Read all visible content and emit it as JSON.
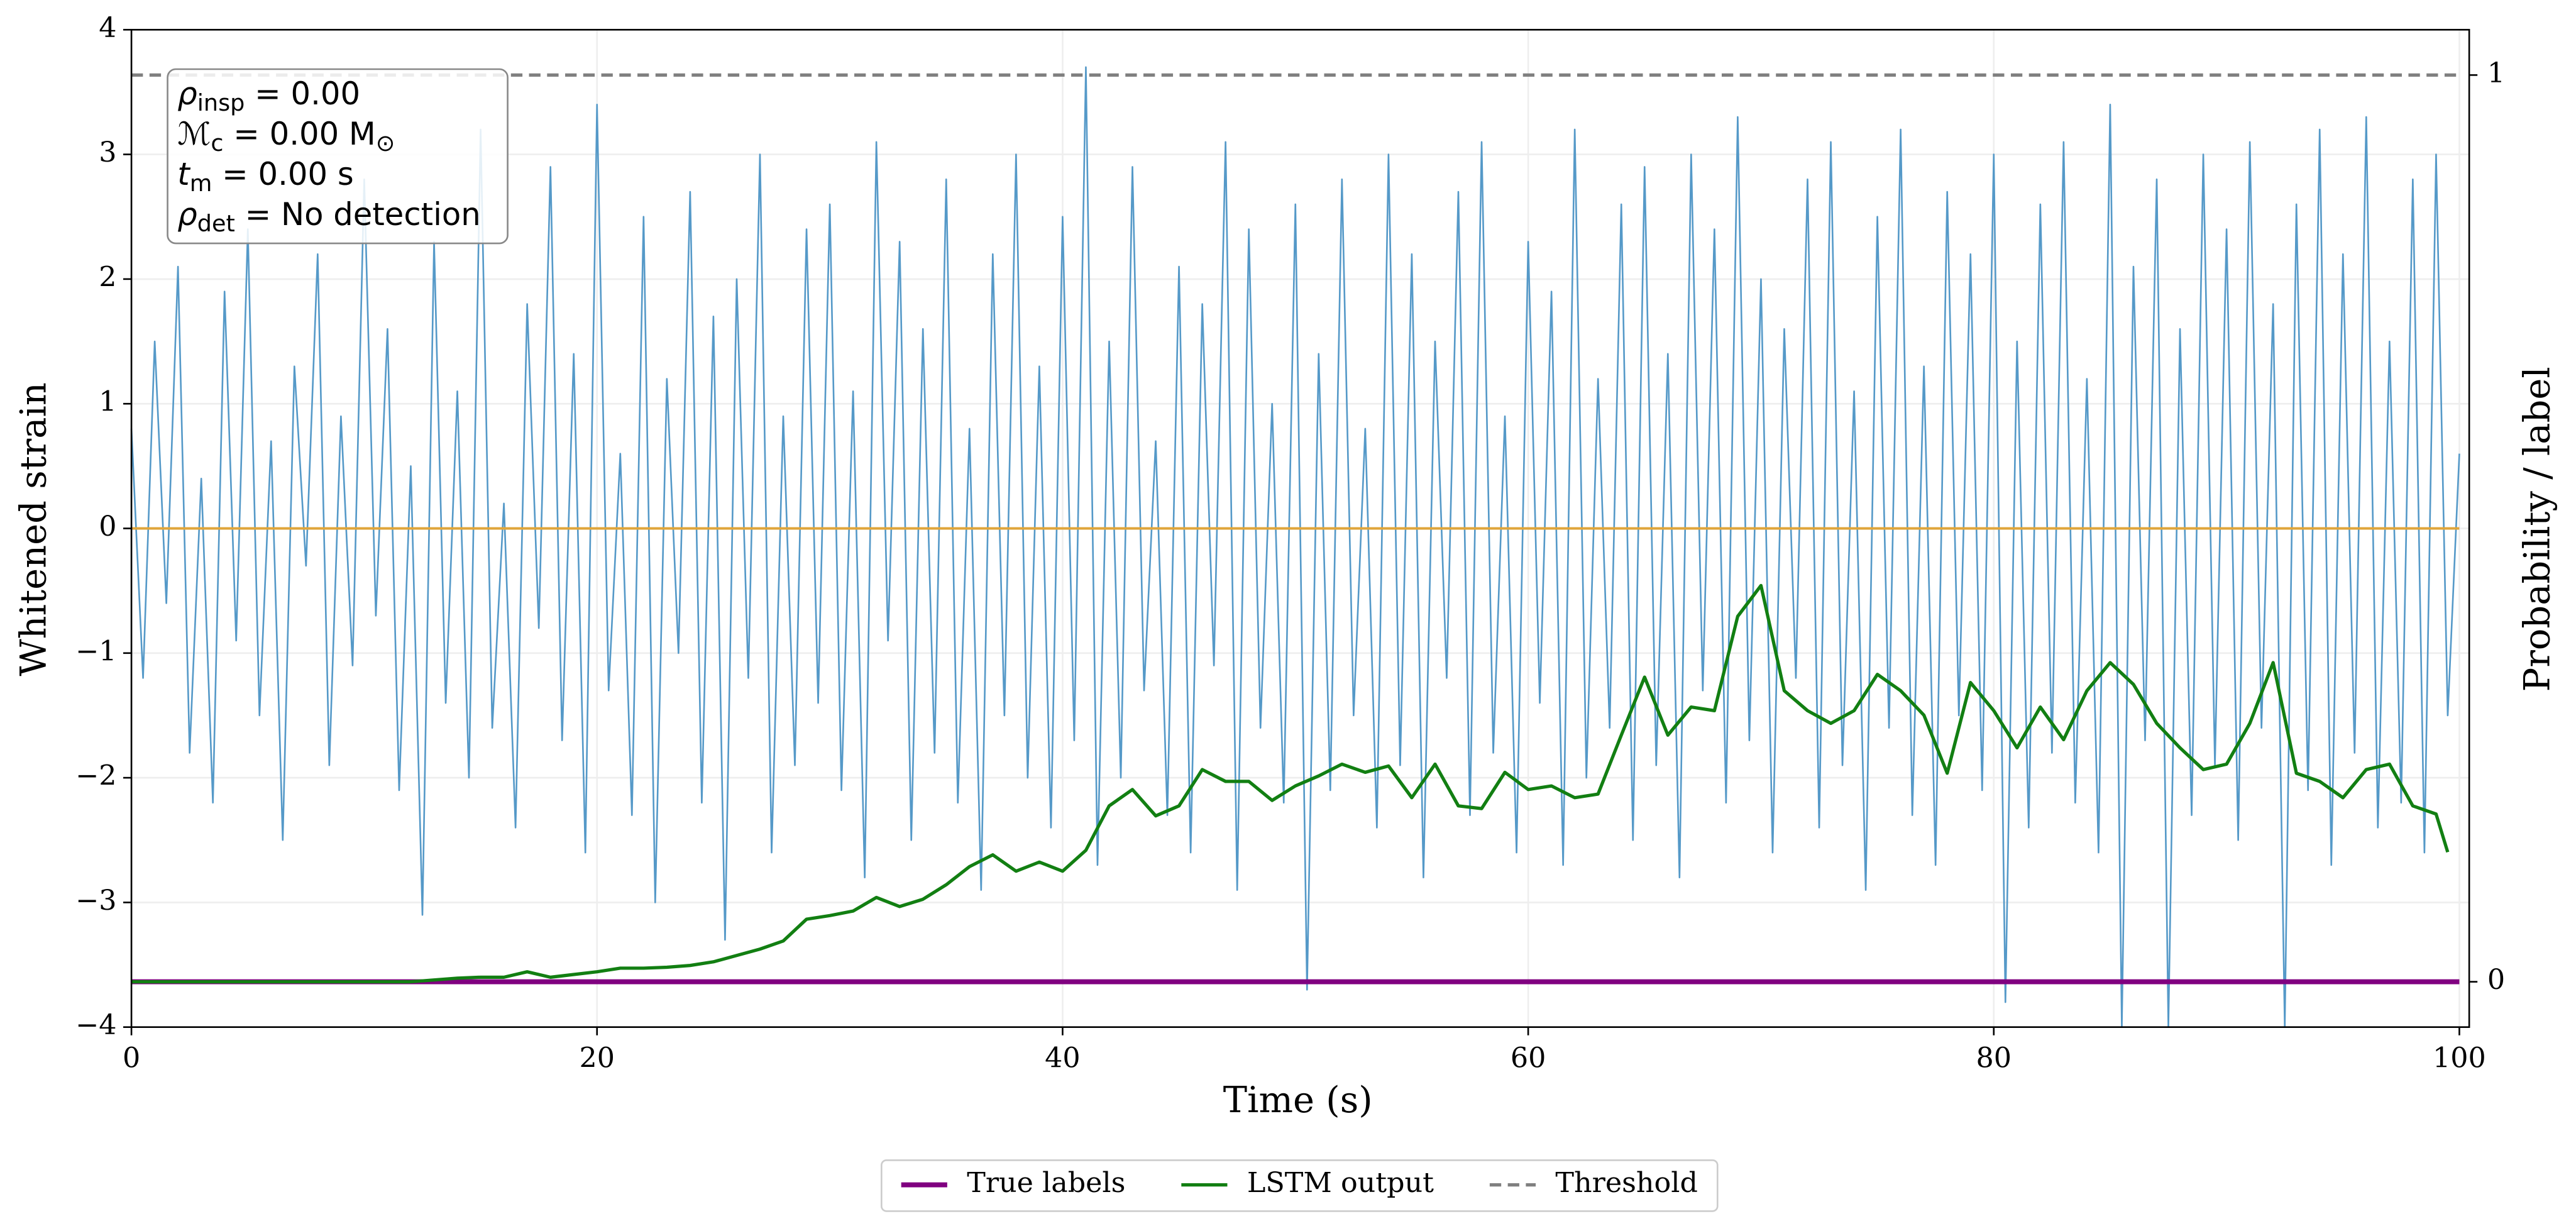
{
  "chart_data": {
    "type": "line",
    "xlabel": "Time (s)",
    "ylabel": "Whitened strain",
    "y2label": "Probability / label",
    "xlim": [
      0,
      100
    ],
    "xticks": [
      0,
      20,
      40,
      60,
      80,
      100
    ],
    "ylim": [
      -4,
      4
    ],
    "yticks": [
      {
        "value": -4,
        "label": "−4"
      },
      {
        "value": -3,
        "label": "−3"
      },
      {
        "value": -2,
        "label": "−2"
      },
      {
        "value": -1,
        "label": "−1"
      },
      0,
      1,
      2,
      3,
      4
    ],
    "y2lim": [
      -0.05,
      1.05
    ],
    "y2ticks": [
      0,
      1
    ],
    "grid": true,
    "legend": "below",
    "annotation": [
      {
        "symbol": "ρ",
        "subscript": "insp",
        "text": " = 0.00"
      },
      {
        "symbol": "ℳ",
        "subscript": "c",
        "text": " = 0.00 M",
        "tail": "⊙"
      },
      {
        "symbol": "t",
        "subscript": "m",
        "text": " = 0.00 s"
      },
      {
        "symbol": "ρ",
        "subscript": "det",
        "text": " = No detection"
      }
    ],
    "series": [
      {
        "color": "#5599c8",
        "x": [
          0,
          0.5,
          1,
          1.5,
          2,
          2.5,
          3,
          3.5,
          4,
          4.5,
          5,
          5.5,
          6,
          6.5,
          7,
          7.5,
          8,
          8.5,
          9,
          9.5,
          10,
          10.5,
          11,
          11.5,
          12,
          12.5,
          13,
          13.5,
          14,
          14.5,
          15,
          15.5,
          16,
          16.5,
          17,
          17.5,
          18,
          18.5,
          19,
          19.5,
          20,
          20.5,
          21,
          21.5,
          22,
          22.5,
          23,
          23.5,
          24,
          24.5,
          25,
          25.5,
          26,
          26.5,
          27,
          27.5,
          28,
          28.5,
          29,
          29.5,
          30,
          30.5,
          31,
          31.5,
          32,
          32.5,
          33,
          33.5,
          34,
          34.5,
          35,
          35.5,
          36,
          36.5,
          37,
          37.5,
          38,
          38.5,
          39,
          39.5,
          40,
          40.5,
          41,
          41.5,
          42,
          42.5,
          43,
          43.5,
          44,
          44.5,
          45,
          45.5,
          46,
          46.5,
          47,
          47.5,
          48,
          48.5,
          49,
          49.5,
          50,
          50.5,
          51,
          51.5,
          52,
          52.5,
          53,
          53.5,
          54,
          54.5,
          55,
          55.5,
          56,
          56.5,
          57,
          57.5,
          58,
          58.5,
          59,
          59.5,
          60,
          60.5,
          61,
          61.5,
          62,
          62.5,
          63,
          63.5,
          64,
          64.5,
          65,
          65.5,
          66,
          66.5,
          67,
          67.5,
          68,
          68.5,
          69,
          69.5,
          70,
          70.5,
          71,
          71.5,
          72,
          72.5,
          73,
          73.5,
          74,
          74.5,
          75,
          75.5,
          76,
          76.5,
          77,
          77.5,
          78,
          78.5,
          79,
          79.5,
          80,
          80.5,
          81,
          81.5,
          82,
          82.5,
          83,
          83.5,
          84,
          84.5,
          85,
          85.5,
          86,
          86.5,
          87,
          87.5,
          88,
          88.5,
          89,
          89.5,
          90,
          90.5,
          91,
          91.5,
          92,
          92.5,
          93,
          93.5,
          94,
          94.5,
          95,
          95.5,
          96,
          96.5,
          97,
          97.5,
          98,
          98.5,
          99,
          99.5,
          100
        ],
        "values": [
          0.8,
          -1.2,
          1.5,
          -0.6,
          2.1,
          -1.8,
          0.4,
          -2.2,
          1.9,
          -0.9,
          2.4,
          -1.5,
          0.7,
          -2.5,
          1.3,
          -0.3,
          2.2,
          -1.9,
          0.9,
          -1.1,
          2.8,
          -0.7,
          1.6,
          -2.1,
          0.5,
          -3.1,
          2.3,
          -1.4,
          1.1,
          -2.0,
          3.2,
          -1.6,
          0.2,
          -2.4,
          1.8,
          -0.8,
          2.9,
          -1.7,
          1.4,
          -2.6,
          3.4,
          -1.3,
          0.6,
          -2.3,
          2.5,
          -3.0,
          1.2,
          -1.0,
          2.7,
          -2.2,
          1.7,
          -3.3,
          2.0,
          -1.2,
          3.0,
          -2.6,
          0.9,
          -1.9,
          2.4,
          -1.4,
          2.6,
          -2.1,
          1.1,
          -2.8,
          3.1,
          -0.9,
          2.3,
          -2.5,
          1.6,
          -1.8,
          2.8,
          -2.2,
          0.8,
          -2.9,
          2.2,
          -1.5,
          3.0,
          -2.0,
          1.3,
          -2.4,
          2.5,
          -1.7,
          3.7,
          -2.7,
          1.5,
          -2.0,
          2.9,
          -1.3,
          0.7,
          -2.3,
          2.1,
          -2.6,
          1.8,
          -1.1,
          3.1,
          -2.9,
          2.4,
          -1.6,
          1.0,
          -2.2,
          2.6,
          -3.7,
          1.4,
          -2.1,
          2.8,
          -1.5,
          0.8,
          -2.4,
          3.0,
          -1.9,
          2.2,
          -2.8,
          1.5,
          -1.2,
          2.7,
          -2.3,
          3.1,
          -1.8,
          0.9,
          -2.6,
          2.3,
          -1.4,
          1.9,
          -2.7,
          3.2,
          -2.0,
          1.2,
          -1.6,
          2.6,
          -2.5,
          2.9,
          -1.9,
          1.4,
          -2.8,
          3.0,
          -1.3,
          2.4,
          -2.2,
          3.3,
          -1.7,
          2.0,
          -2.6,
          1.6,
          -1.2,
          2.8,
          -2.4,
          3.1,
          -1.9,
          1.1,
          -2.9,
          2.5,
          -1.6,
          3.2,
          -2.3,
          1.3,
          -2.7,
          2.7,
          -1.5,
          2.2,
          -2.1,
          3.0,
          -3.8,
          1.5,
          -2.4,
          2.6,
          -1.8,
          3.1,
          -2.2,
          1.2,
          -2.6,
          3.4,
          -4.0,
          2.1,
          -1.7,
          2.8,
          -4.0,
          1.6,
          -2.3,
          3.0,
          -1.9,
          2.4,
          -2.5,
          3.1,
          -1.6,
          1.8,
          -4.0,
          2.6,
          -2.1,
          3.2,
          -2.7,
          2.2,
          -1.8,
          3.3,
          -2.4,
          1.5,
          -2.2,
          2.8,
          -2.6,
          3.0,
          -1.5,
          0.6
        ]
      },
      {
        "color": "#e0a53a",
        "x": [
          0,
          100
        ],
        "values": [
          0,
          0
        ]
      },
      {
        "name": "True labels",
        "color": "#800080",
        "axis": "y2",
        "x": [
          0,
          100
        ],
        "values": [
          0,
          0
        ]
      },
      {
        "name": "LSTM output",
        "color": "#127f12",
        "axis": "y2",
        "x": [
          0,
          1,
          2,
          3,
          4,
          5,
          6,
          7,
          8,
          9,
          10,
          11,
          12,
          13,
          14,
          15,
          16,
          17,
          18,
          19,
          20,
          21,
          22,
          23,
          24,
          25,
          26,
          27,
          28,
          29,
          30,
          31,
          32,
          33,
          34,
          35,
          36,
          37,
          38,
          39,
          40,
          41,
          42,
          43,
          44,
          45,
          46,
          47,
          48,
          49,
          50,
          51,
          52,
          53,
          54,
          55,
          56,
          57,
          58,
          59,
          60,
          61,
          62,
          63,
          64,
          65,
          66,
          67,
          68,
          69,
          70,
          71,
          72,
          73,
          74,
          75,
          76,
          77,
          78,
          79,
          80,
          81,
          82,
          83,
          84,
          85,
          86,
          87,
          88,
          89,
          90,
          91,
          92,
          93,
          94,
          95,
          96,
          97,
          98,
          99,
          99.5
        ],
        "values": [
          0,
          0,
          0,
          0,
          0,
          0,
          0,
          0,
          0,
          0,
          0,
          0,
          0,
          0.002,
          0.004,
          0.005,
          0.005,
          0.011,
          0.005,
          0.008,
          0.011,
          0.015,
          0.015,
          0.016,
          0.018,
          0.022,
          0.029,
          0.036,
          0.045,
          0.069,
          0.073,
          0.078,
          0.093,
          0.083,
          0.091,
          0.107,
          0.127,
          0.14,
          0.122,
          0.132,
          0.122,
          0.145,
          0.194,
          0.212,
          0.183,
          0.194,
          0.234,
          0.221,
          0.221,
          0.2,
          0.216,
          0.227,
          0.24,
          0.231,
          0.238,
          0.203,
          0.24,
          0.194,
          0.191,
          0.231,
          0.212,
          0.216,
          0.203,
          0.207,
          0.272,
          0.336,
          0.272,
          0.303,
          0.299,
          0.403,
          0.437,
          0.321,
          0.299,
          0.285,
          0.299,
          0.339,
          0.321,
          0.294,
          0.23,
          0.33,
          0.299,
          0.258,
          0.303,
          0.267,
          0.321,
          0.352,
          0.328,
          0.285,
          0.258,
          0.234,
          0.24,
          0.285,
          0.352,
          0.23,
          0.221,
          0.203,
          0.234,
          0.24,
          0.194,
          0.185,
          0.143
        ]
      },
      {
        "name": "Threshold",
        "color": "#808080",
        "axis": "y2",
        "dash": true,
        "x": [
          0,
          100
        ],
        "values": [
          1,
          1
        ]
      }
    ]
  }
}
